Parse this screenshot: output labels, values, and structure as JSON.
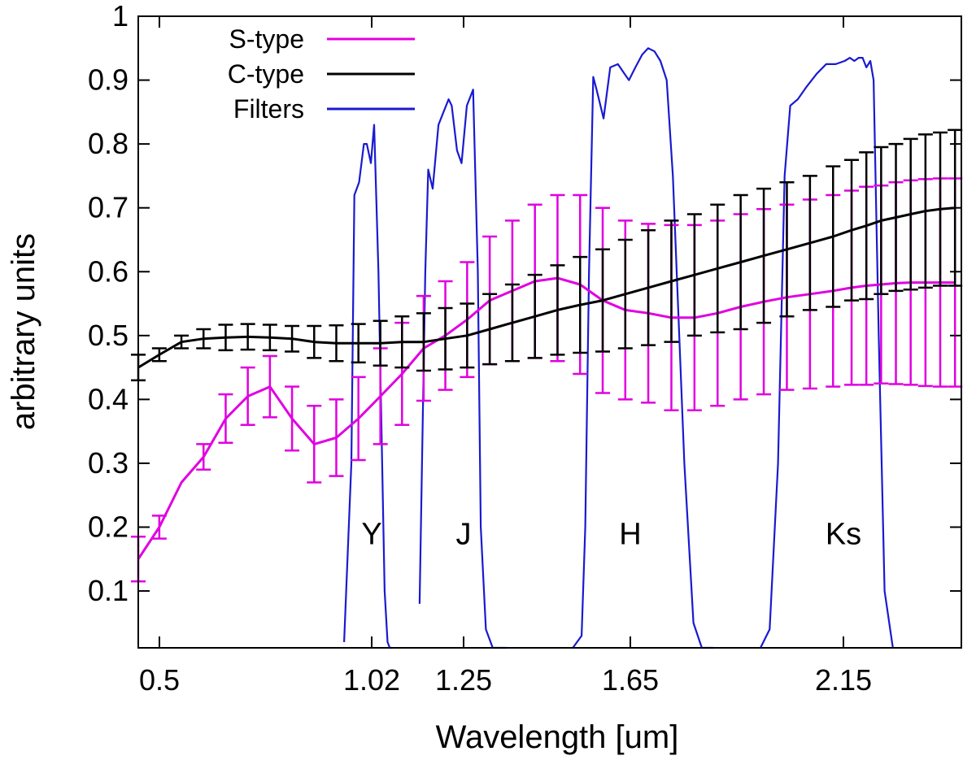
{
  "chart_data": {
    "type": "line",
    "title": "",
    "xlabel": "Wavelength [um]",
    "ylabel": "arbitrary units",
    "xlim": [
      0.4455,
      2.5826
    ],
    "ylim": [
      0.011,
      1.0
    ],
    "x_scale": "band-position (categorical spacing of filter bands)",
    "xticks": [
      {
        "label": "0.5",
        "value": 0.5
      },
      {
        "label": "1.02",
        "value": 1.02
      },
      {
        "label": "1.25",
        "value": 1.25
      },
      {
        "label": "1.65",
        "value": 1.65
      },
      {
        "label": "2.15",
        "value": 2.15
      }
    ],
    "yticks": [
      {
        "label": "0.1",
        "value": 0.1
      },
      {
        "label": "0.2",
        "value": 0.2
      },
      {
        "label": "0.3",
        "value": 0.3
      },
      {
        "label": "0.4",
        "value": 0.4
      },
      {
        "label": "0.5",
        "value": 0.5
      },
      {
        "label": "0.6",
        "value": 0.6
      },
      {
        "label": "0.7",
        "value": 0.7
      },
      {
        "label": "0.8",
        "value": 0.8
      },
      {
        "label": "0.9",
        "value": 0.9
      },
      {
        "label": "1",
        "value": 1.0
      }
    ],
    "legend": {
      "position": "top-left",
      "entries": [
        {
          "label": "S-type",
          "color": "#e000e0"
        },
        {
          "label": "C-type",
          "color": "#000000"
        },
        {
          "label": "Filters",
          "color": "#1a1ad0"
        }
      ]
    },
    "band_labels": [
      {
        "text": "Y",
        "x": 1.02,
        "y": 0.19
      },
      {
        "text": "J",
        "x": 1.25,
        "y": 0.19
      },
      {
        "text": "H",
        "x": 1.65,
        "y": 0.19
      },
      {
        "text": "Ks",
        "x": 2.15,
        "y": 0.19
      }
    ],
    "series": [
      {
        "name": "S-type",
        "color": "#e000e0",
        "x": [
          0.4455,
          0.4997,
          0.5539,
          0.6081,
          0.6623,
          0.7165,
          0.7707,
          0.8249,
          0.8791,
          0.9333,
          0.9875,
          1.0417,
          1.0959,
          1.1501,
          1.2043,
          1.2585,
          1.3127,
          1.3669,
          1.4211,
          1.4753,
          1.5295,
          1.5837,
          1.6379,
          1.6921,
          1.7463,
          1.8005,
          1.8547,
          1.9089,
          1.9631,
          2.0173,
          2.0715,
          2.1257,
          2.1799,
          2.2341,
          2.2883,
          2.3425,
          2.3967,
          2.4509,
          2.5051,
          2.5593
        ],
        "y": [
          0.15,
          0.2,
          0.27,
          0.31,
          0.37,
          0.405,
          0.42,
          0.37,
          0.33,
          0.34,
          0.37,
          0.405,
          0.44,
          0.48,
          0.5,
          0.525,
          0.555,
          0.57,
          0.585,
          0.59,
          0.58,
          0.555,
          0.54,
          0.535,
          0.528,
          0.528,
          0.535,
          0.545,
          0.553,
          0.56,
          0.565,
          0.57,
          0.575,
          0.578,
          0.58,
          0.582,
          0.583,
          0.583,
          0.583,
          0.583
        ],
        "err": [
          0.035,
          0.018,
          0.0,
          0.02,
          0.038,
          0.045,
          0.048,
          0.05,
          0.06,
          0.06,
          0.065,
          0.075,
          0.08,
          0.082,
          0.085,
          0.09,
          0.1,
          0.11,
          0.12,
          0.13,
          0.14,
          0.145,
          0.14,
          0.14,
          0.145,
          0.145,
          0.145,
          0.145,
          0.145,
          0.145,
          0.148,
          0.15,
          0.152,
          0.155,
          0.155,
          0.158,
          0.16,
          0.162,
          0.163,
          0.163
        ]
      },
      {
        "name": "C-type",
        "color": "#000000",
        "x": [
          0.4455,
          0.4997,
          0.5539,
          0.6081,
          0.6623,
          0.7165,
          0.7707,
          0.8249,
          0.8791,
          0.9333,
          0.9875,
          1.0417,
          1.0959,
          1.1501,
          1.2043,
          1.2585,
          1.3127,
          1.3669,
          1.4211,
          1.4753,
          1.5295,
          1.5837,
          1.6379,
          1.6921,
          1.7463,
          1.8005,
          1.8547,
          1.9089,
          1.9631,
          2.0173,
          2.0715,
          2.1257,
          2.1799,
          2.2341,
          2.2883,
          2.3425,
          2.3967,
          2.4509,
          2.5051,
          2.5593
        ],
        "y": [
          0.45,
          0.47,
          0.49,
          0.495,
          0.497,
          0.498,
          0.497,
          0.495,
          0.49,
          0.488,
          0.488,
          0.488,
          0.49,
          0.49,
          0.495,
          0.5,
          0.51,
          0.52,
          0.53,
          0.54,
          0.548,
          0.555,
          0.565,
          0.575,
          0.585,
          0.595,
          0.605,
          0.615,
          0.625,
          0.635,
          0.645,
          0.655,
          0.665,
          0.672,
          0.68,
          0.685,
          0.69,
          0.695,
          0.698,
          0.7
        ],
        "err": [
          0.02,
          0.01,
          0.01,
          0.015,
          0.02,
          0.02,
          0.02,
          0.02,
          0.025,
          0.028,
          0.03,
          0.035,
          0.04,
          0.045,
          0.048,
          0.05,
          0.055,
          0.06,
          0.065,
          0.07,
          0.075,
          0.08,
          0.085,
          0.09,
          0.095,
          0.095,
          0.1,
          0.105,
          0.105,
          0.105,
          0.105,
          0.11,
          0.11,
          0.115,
          0.115,
          0.115,
          0.118,
          0.12,
          0.12,
          0.122
        ]
      },
      {
        "name": "Filters",
        "color": "#1a1ad0",
        "x": [
          0.9525,
          0.9701,
          0.9775,
          0.9892,
          1.0009,
          1.0081,
          1.0181,
          1.0262,
          1.0368,
          1.0524,
          1.0596,
          1.0652,
          1.0715,
          null,
          1.1398,
          1.1541,
          1.1614,
          1.1727,
          1.1871,
          1.1998,
          1.2125,
          1.2203,
          1.2335,
          1.245,
          1.2578,
          1.2729,
          1.2841,
          1.2912,
          1.3035,
          1.3198,
          1.3349,
          1.3529,
          null,
          1.5121,
          1.5331,
          1.5419,
          1.5508,
          1.561,
          1.5691,
          1.5859,
          1.6019,
          1.6202,
          1.6359,
          1.6466,
          1.6618,
          1.6778,
          1.6919,
          1.7066,
          1.7207,
          1.7354,
          1.7499,
          1.7767,
          1.7981,
          1.8177,
          1.8447,
          null,
          1.9554,
          1.9769,
          1.9966,
          2.012,
          2.0251,
          2.0429,
          2.0639,
          2.0874,
          2.1096,
          2.1318,
          2.1544,
          2.174,
          2.1901,
          2.2058,
          2.2203,
          2.2341,
          2.2487,
          2.2606,
          2.2796,
          2.3011,
          2.3314
        ],
        "y": [
          0.02,
          0.3,
          0.72,
          0.74,
          0.8,
          0.8,
          0.77,
          0.83,
          0.6,
          0.1,
          0.02,
          0.011,
          0.011,
          null,
          0.08,
          0.6,
          0.76,
          0.73,
          0.83,
          0.85,
          0.87,
          0.86,
          0.79,
          0.77,
          0.86,
          0.885,
          0.6,
          0.2,
          0.04,
          0.011,
          0.011,
          0.011,
          null,
          0.011,
          0.03,
          0.2,
          0.6,
          0.905,
          0.885,
          0.84,
          0.92,
          0.925,
          0.91,
          0.9,
          0.92,
          0.94,
          0.95,
          0.945,
          0.93,
          0.9,
          0.75,
          0.3,
          0.05,
          0.011,
          0.011,
          null,
          0.011,
          0.04,
          0.3,
          0.75,
          0.86,
          0.87,
          0.89,
          0.91,
          0.925,
          0.925,
          0.93,
          0.935,
          0.93,
          0.935,
          0.935,
          0.92,
          0.93,
          0.9,
          0.5,
          0.1,
          0.011
        ]
      }
    ]
  }
}
